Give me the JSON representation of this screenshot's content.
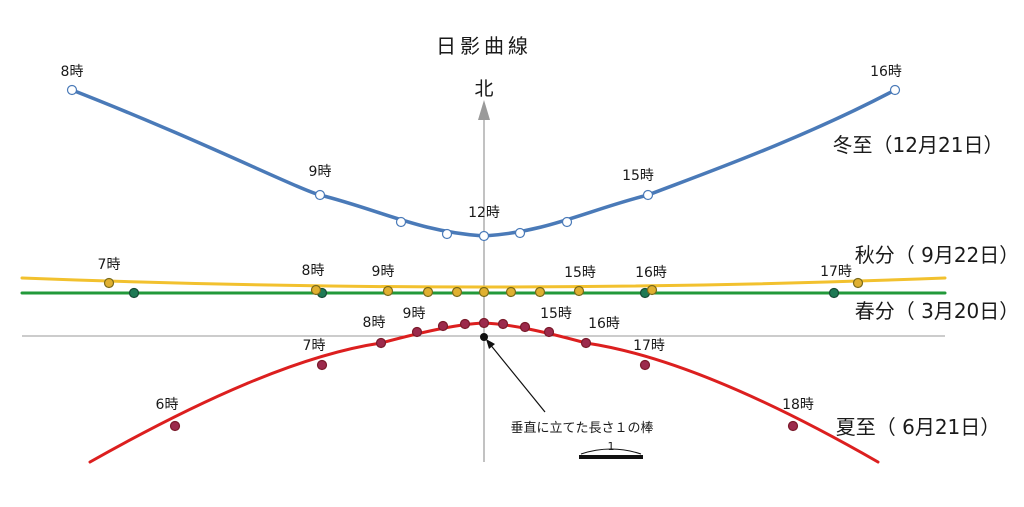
{
  "title": "日影曲線",
  "north_label": "北",
  "stick_label": "垂直に立てた長さ１の棒",
  "scale_label": "1",
  "colors": {
    "winter": "#4a7ab8",
    "autumn": "#f2c12e",
    "spring": "#22993a",
    "summer": "#dc1f1f",
    "axis": "#9a9a9a",
    "summer_dot": "#9c2a4c",
    "autumn_dot": "#e0b030",
    "spring_dot": "#1f7a55"
  },
  "curves": [
    {
      "id": "winter",
      "season_label": "冬至（12月21日）",
      "hour_labels": [
        {
          "hour": 8,
          "text": "8時"
        },
        {
          "hour": 9,
          "text": "9時"
        },
        {
          "hour": 12,
          "text": "12時"
        },
        {
          "hour": 15,
          "text": "15時"
        },
        {
          "hour": 16,
          "text": "16時"
        }
      ]
    },
    {
      "id": "autumn",
      "season_label": "秋分（ 9月22日）",
      "hour_labels": [
        {
          "hour": 7,
          "text": "7時"
        },
        {
          "hour": 8,
          "text": "8時"
        },
        {
          "hour": 9,
          "text": "9時"
        },
        {
          "hour": 15,
          "text": "15時"
        },
        {
          "hour": 16,
          "text": "16時"
        },
        {
          "hour": 17,
          "text": "17時"
        }
      ]
    },
    {
      "id": "spring",
      "season_label": "春分（ 3月20日）",
      "hour_labels": []
    },
    {
      "id": "summer",
      "season_label": "夏至（ 6月21日）",
      "hour_labels": [
        {
          "hour": 6,
          "text": "6時"
        },
        {
          "hour": 7,
          "text": "7時"
        },
        {
          "hour": 8,
          "text": "8時"
        },
        {
          "hour": 9,
          "text": "9時"
        },
        {
          "hour": 15,
          "text": "15時"
        },
        {
          "hour": 16,
          "text": "16時"
        },
        {
          "hour": 17,
          "text": "17時"
        },
        {
          "hour": 18,
          "text": "18時"
        }
      ]
    }
  ]
}
